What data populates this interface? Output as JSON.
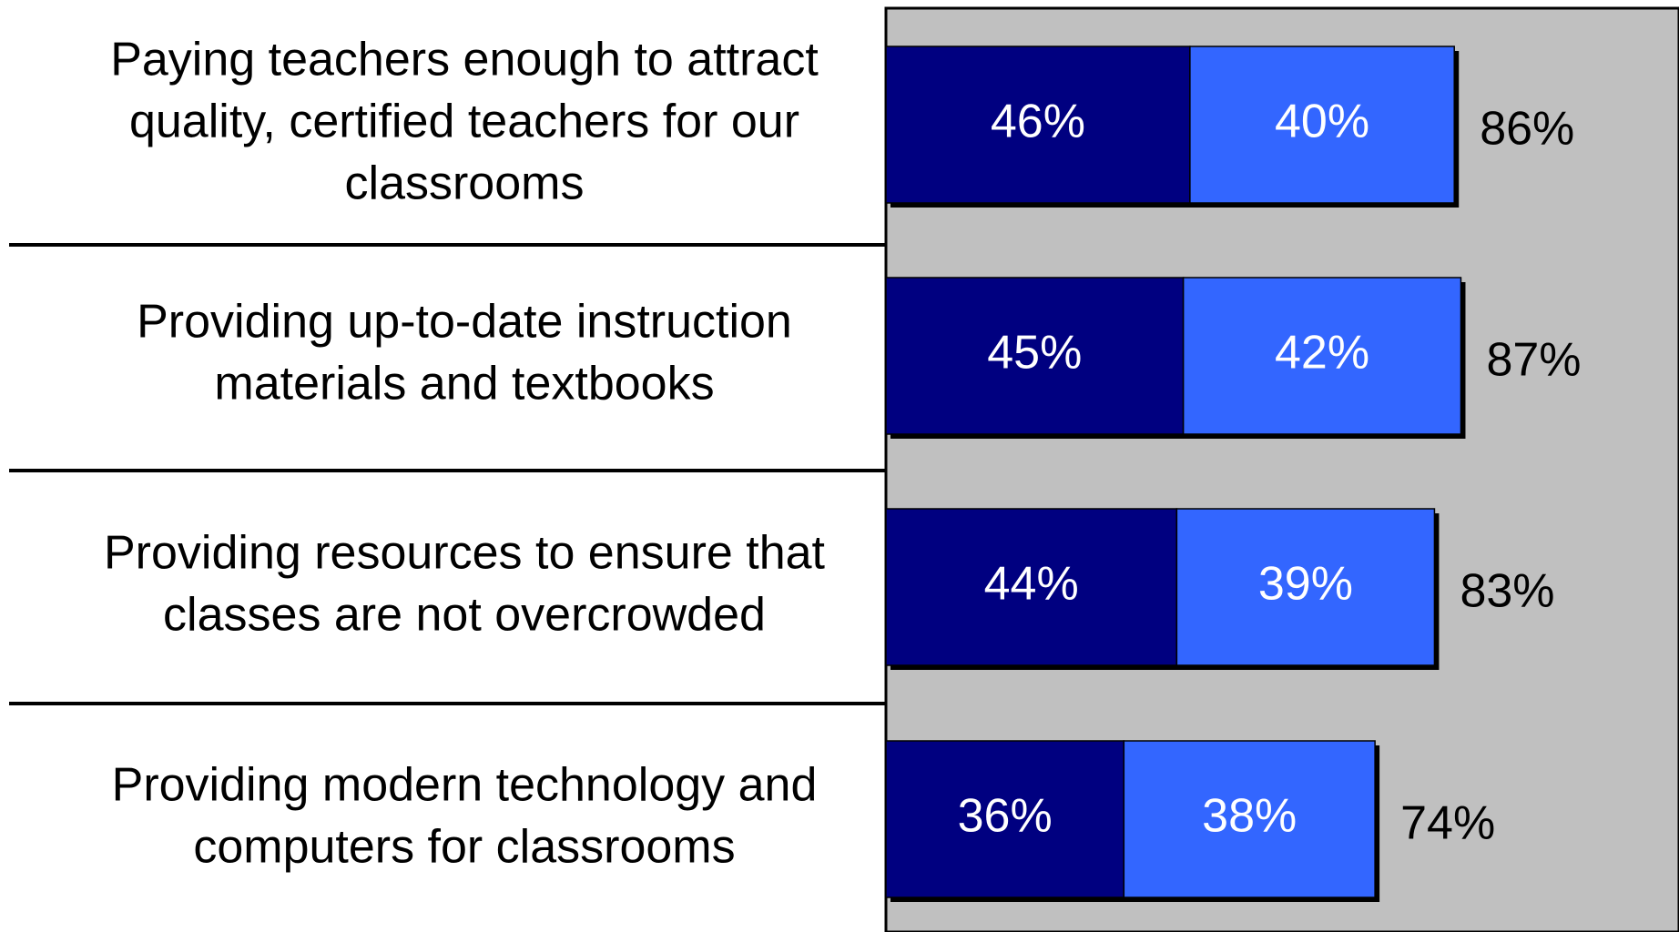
{
  "chart_data": {
    "type": "stacked-barh",
    "categories": [
      [
        "Paying teachers enough to attract",
        "quality, certified teachers for our",
        "classrooms"
      ],
      [
        "Providing up-to-date instruction",
        "materials and textbooks"
      ],
      [
        "Providing resources to ensure that",
        "classes are not overcrowded"
      ],
      [
        "Providing modern technology and",
        "computers for classrooms"
      ]
    ],
    "series": [
      {
        "color": "#000080",
        "values": [
          46,
          45,
          44,
          36
        ],
        "value_labels": [
          "46%",
          "45%",
          "44%",
          "36%"
        ]
      },
      {
        "color": "#3366ff",
        "values": [
          40,
          42,
          39,
          38
        ],
        "value_labels": [
          "40%",
          "42%",
          "39%",
          "38%"
        ]
      }
    ],
    "totals": [
      86,
      87,
      83,
      74
    ],
    "total_labels": [
      "86%",
      "87%",
      "83%",
      "74%"
    ],
    "xlim": [
      0,
      120
    ],
    "plot_background": "#c0c0c0"
  }
}
